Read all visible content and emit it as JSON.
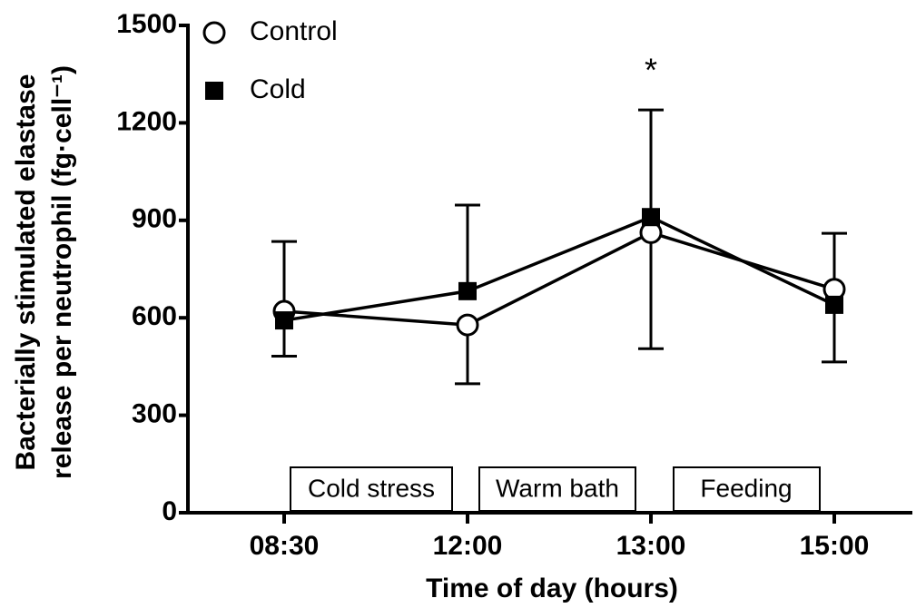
{
  "chart_data": {
    "type": "line",
    "ylabel": [
      "Bacterially stimulated elastase",
      "release per neutrophil (fg·cell⁻¹)"
    ],
    "xlabel": "Time of day (hours)",
    "categories": [
      "08:30",
      "12:00",
      "13:00",
      "15:00"
    ],
    "series": [
      {
        "name": "Control",
        "color": "#000000",
        "marker": "open-circle",
        "values": [
          620,
          578,
          862,
          688
        ],
        "error_upper": [
          215,
          null,
          null,
          172
        ],
        "error_lower": [
          null,
          181,
          357,
          null
        ]
      },
      {
        "name": "Cold",
        "color": "#000000",
        "marker": "filled-square",
        "values": [
          592,
          682,
          910,
          640
        ],
        "error_upper": [
          null,
          265,
          330,
          null
        ],
        "error_lower": [
          110,
          null,
          null,
          176
        ]
      }
    ],
    "ylim": [
      0,
      1500
    ],
    "yticks": [
      0,
      300,
      600,
      900,
      1200,
      1500
    ],
    "legend": "upper left",
    "annotations": [
      {
        "text": "*",
        "category": 2
      }
    ],
    "periods": [
      "Cold stress",
      "Warm bath",
      "Feeding"
    ]
  }
}
